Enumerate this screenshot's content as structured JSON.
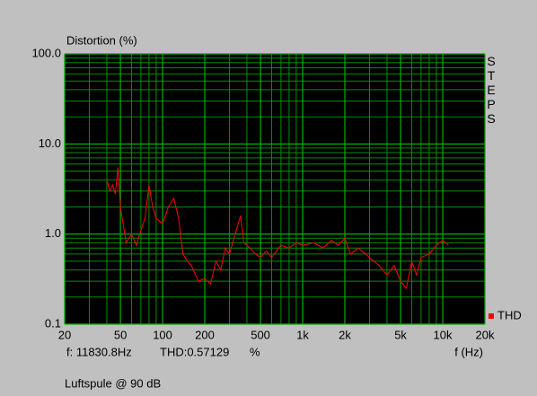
{
  "chart_data": {
    "type": "line",
    "y_label": "Distortion (%)",
    "x_label": "f (Hz)",
    "side_label": "STEPS",
    "footer": "Luftspule @ 90 dB",
    "status": {
      "frequency": "f: 11830.8Hz",
      "thd": "THD:0.57129",
      "unit": "%"
    },
    "xlog": true,
    "ylog": true,
    "grid": true,
    "legend": "lower right",
    "xlim": [
      20,
      20000
    ],
    "xticks": [
      20,
      50,
      100,
      200,
      500,
      {
        "value": 1000,
        "label": "1k"
      },
      {
        "value": 2000,
        "label": "2k"
      },
      {
        "value": 5000,
        "label": "5k"
      },
      {
        "value": 10000,
        "label": "10k"
      },
      {
        "value": 20000,
        "label": "20k"
      }
    ],
    "ylim": [
      0.1,
      100
    ],
    "yticks": [
      0.1,
      {
        "value": 1,
        "label": "1.0"
      },
      {
        "value": 10,
        "label": "10.0"
      },
      {
        "value": 100,
        "label": "100.0"
      }
    ],
    "x": [
      40,
      42,
      44,
      46,
      48,
      50,
      55,
      60,
      65,
      70,
      75,
      80,
      85,
      90,
      100,
      110,
      120,
      130,
      140,
      150,
      160,
      180,
      200,
      220,
      240,
      260,
      280,
      300,
      330,
      360,
      380,
      420,
      460,
      500,
      550,
      600,
      700,
      800,
      900,
      1000,
      1200,
      1400,
      1600,
      1800,
      2000,
      2200,
      2500,
      3000,
      3500,
      4000,
      4500,
      5000,
      5500,
      6000,
      6500,
      7000,
      8000,
      9000,
      10000,
      11000
    ],
    "series": [
      {
        "name": "THD",
        "color": "#ff0000",
        "values": [
          4,
          3,
          3.5,
          2.8,
          5.5,
          2,
          0.8,
          1.0,
          0.75,
          1.1,
          1.5,
          3.5,
          2,
          1.5,
          1.3,
          2,
          2.5,
          1.5,
          0.6,
          0.5,
          0.45,
          0.3,
          0.32,
          0.28,
          0.5,
          0.4,
          0.7,
          0.6,
          1.0,
          1.6,
          0.8,
          0.7,
          0.6,
          0.55,
          0.65,
          0.55,
          0.75,
          0.7,
          0.8,
          0.75,
          0.8,
          0.7,
          0.85,
          0.75,
          0.9,
          0.6,
          0.7,
          0.55,
          0.45,
          0.35,
          0.45,
          0.3,
          0.25,
          0.5,
          0.35,
          0.55,
          0.6,
          0.75,
          0.85,
          0.75
        ]
      }
    ]
  }
}
